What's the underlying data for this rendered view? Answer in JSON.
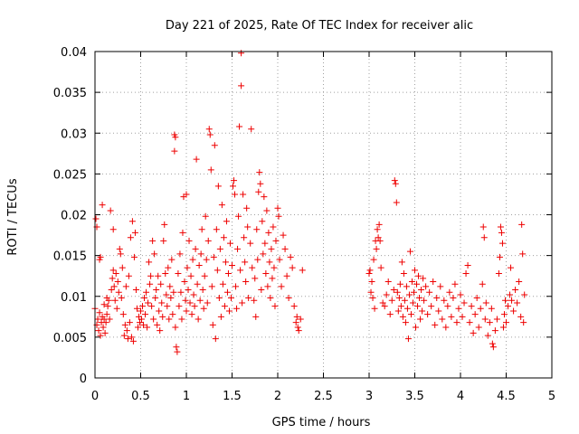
{
  "chart_data": {
    "type": "scatter",
    "title": "Day 221 of 2025, Rate Of TEC Index for receiver alic",
    "xlabel": "GPS time / hours",
    "ylabel": "ROTI / TECUs",
    "xlim": [
      0,
      5
    ],
    "ylim": [
      0,
      0.04
    ],
    "x_ticks": [
      "0",
      "0.5",
      "1",
      "1.5",
      "2",
      "2.5",
      "3",
      "3.5",
      "4",
      "4.5",
      "5"
    ],
    "y_ticks": [
      "0",
      "0.005",
      "0.01",
      "0.015",
      "0.02",
      "0.025",
      "0.03",
      "0.035",
      "0.04"
    ],
    "grid": true,
    "marker": "+",
    "color": "#ee0000",
    "points": [
      [
        0.0,
        0.0085
      ],
      [
        0.01,
        0.0195
      ],
      [
        0.02,
        0.0185
      ],
      [
        0.02,
        0.0065
      ],
      [
        0.03,
        0.0072
      ],
      [
        0.04,
        0.0058
      ],
      [
        0.05,
        0.0145
      ],
      [
        0.05,
        0.008
      ],
      [
        0.06,
        0.0148
      ],
      [
        0.06,
        0.0052
      ],
      [
        0.07,
        0.0068
      ],
      [
        0.08,
        0.0212
      ],
      [
        0.08,
        0.0075
      ],
      [
        0.09,
        0.0062
      ],
      [
        0.1,
        0.0072
      ],
      [
        0.1,
        0.009
      ],
      [
        0.11,
        0.0055
      ],
      [
        0.12,
        0.0068
      ],
      [
        0.13,
        0.0098
      ],
      [
        0.13,
        0.0078
      ],
      [
        0.14,
        0.0088
      ],
      [
        0.15,
        0.0095
      ],
      [
        0.16,
        0.0072
      ],
      [
        0.17,
        0.0205
      ],
      [
        0.18,
        0.0108
      ],
      [
        0.19,
        0.0122
      ],
      [
        0.2,
        0.0132
      ],
      [
        0.2,
        0.0182
      ],
      [
        0.21,
        0.0112
      ],
      [
        0.22,
        0.0095
      ],
      [
        0.23,
        0.0128
      ],
      [
        0.24,
        0.0085
      ],
      [
        0.25,
        0.0118
      ],
      [
        0.26,
        0.0105
      ],
      [
        0.27,
        0.0158
      ],
      [
        0.28,
        0.0152
      ],
      [
        0.29,
        0.0098
      ],
      [
        0.3,
        0.0135
      ],
      [
        0.31,
        0.0078
      ],
      [
        0.32,
        0.0052
      ],
      [
        0.33,
        0.0065
      ],
      [
        0.34,
        0.0112
      ],
      [
        0.35,
        0.0058
      ],
      [
        0.36,
        0.0048
      ],
      [
        0.37,
        0.0125
      ],
      [
        0.38,
        0.0068
      ],
      [
        0.39,
        0.0172
      ],
      [
        0.4,
        0.005
      ],
      [
        0.41,
        0.0192
      ],
      [
        0.42,
        0.0045
      ],
      [
        0.43,
        0.0148
      ],
      [
        0.44,
        0.0178
      ],
      [
        0.45,
        0.0108
      ],
      [
        0.46,
        0.0085
      ],
      [
        0.47,
        0.0062
      ],
      [
        0.48,
        0.0075
      ],
      [
        0.49,
        0.0068
      ],
      [
        0.5,
        0.0082
      ],
      [
        0.51,
        0.0072
      ],
      [
        0.52,
        0.0088
      ],
      [
        0.53,
        0.0065
      ],
      [
        0.54,
        0.0098
      ],
      [
        0.55,
        0.0078
      ],
      [
        0.56,
        0.0105
      ],
      [
        0.57,
        0.0062
      ],
      [
        0.58,
        0.0092
      ],
      [
        0.59,
        0.0142
      ],
      [
        0.6,
        0.0115
      ],
      [
        0.61,
        0.0125
      ],
      [
        0.62,
        0.0088
      ],
      [
        0.63,
        0.0168
      ],
      [
        0.64,
        0.0072
      ],
      [
        0.65,
        0.0152
      ],
      [
        0.66,
        0.0098
      ],
      [
        0.67,
        0.0108
      ],
      [
        0.68,
        0.0065
      ],
      [
        0.69,
        0.0125
      ],
      [
        0.7,
        0.0082
      ],
      [
        0.71,
        0.0058
      ],
      [
        0.72,
        0.0115
      ],
      [
        0.73,
        0.0092
      ],
      [
        0.74,
        0.0075
      ],
      [
        0.75,
        0.0168
      ],
      [
        0.76,
        0.0188
      ],
      [
        0.77,
        0.0128
      ],
      [
        0.78,
        0.0102
      ],
      [
        0.79,
        0.0088
      ],
      [
        0.8,
        0.0135
      ],
      [
        0.81,
        0.0072
      ],
      [
        0.82,
        0.0112
      ],
      [
        0.83,
        0.0098
      ],
      [
        0.84,
        0.0145
      ],
      [
        0.85,
        0.0078
      ],
      [
        0.86,
        0.0105
      ],
      [
        0.87,
        0.0298
      ],
      [
        0.87,
        0.0278
      ],
      [
        0.88,
        0.0295
      ],
      [
        0.88,
        0.0062
      ],
      [
        0.89,
        0.0038
      ],
      [
        0.9,
        0.0032
      ],
      [
        0.91,
        0.0128
      ],
      [
        0.92,
        0.0088
      ],
      [
        0.93,
        0.0152
      ],
      [
        0.94,
        0.0105
      ],
      [
        0.95,
        0.0072
      ],
      [
        0.96,
        0.0178
      ],
      [
        0.97,
        0.0222
      ],
      [
        0.98,
        0.0118
      ],
      [
        0.99,
        0.0095
      ],
      [
        1.0,
        0.0225
      ],
      [
        1.0,
        0.0082
      ],
      [
        1.01,
        0.0135
      ],
      [
        1.02,
        0.0108
      ],
      [
        1.03,
        0.0168
      ],
      [
        1.04,
        0.0092
      ],
      [
        1.05,
        0.0125
      ],
      [
        1.06,
        0.0078
      ],
      [
        1.07,
        0.0145
      ],
      [
        1.08,
        0.0102
      ],
      [
        1.09,
        0.0088
      ],
      [
        1.1,
        0.0158
      ],
      [
        1.11,
        0.0268
      ],
      [
        1.12,
        0.0115
      ],
      [
        1.13,
        0.0072
      ],
      [
        1.14,
        0.0138
      ],
      [
        1.15,
        0.0095
      ],
      [
        1.16,
        0.0152
      ],
      [
        1.17,
        0.0182
      ],
      [
        1.18,
        0.0108
      ],
      [
        1.19,
        0.0085
      ],
      [
        1.2,
        0.0125
      ],
      [
        1.21,
        0.0198
      ],
      [
        1.22,
        0.0145
      ],
      [
        1.23,
        0.0092
      ],
      [
        1.24,
        0.0168
      ],
      [
        1.25,
        0.0305
      ],
      [
        1.26,
        0.0298
      ],
      [
        1.27,
        0.0255
      ],
      [
        1.28,
        0.0112
      ],
      [
        1.29,
        0.0065
      ],
      [
        1.3,
        0.0148
      ],
      [
        1.31,
        0.0285
      ],
      [
        1.32,
        0.0048
      ],
      [
        1.33,
        0.0182
      ],
      [
        1.34,
        0.0132
      ],
      [
        1.35,
        0.0235
      ],
      [
        1.36,
        0.0098
      ],
      [
        1.37,
        0.0158
      ],
      [
        1.38,
        0.0075
      ],
      [
        1.39,
        0.0212
      ],
      [
        1.4,
        0.0115
      ],
      [
        1.41,
        0.0172
      ],
      [
        1.42,
        0.0088
      ],
      [
        1.43,
        0.0142
      ],
      [
        1.44,
        0.0192
      ],
      [
        1.45,
        0.0105
      ],
      [
        1.46,
        0.0128
      ],
      [
        1.47,
        0.0082
      ],
      [
        1.48,
        0.0165
      ],
      [
        1.49,
        0.0098
      ],
      [
        1.5,
        0.0138
      ],
      [
        1.51,
        0.0235
      ],
      [
        1.52,
        0.0242
      ],
      [
        1.53,
        0.0225
      ],
      [
        1.54,
        0.0112
      ],
      [
        1.55,
        0.0085
      ],
      [
        1.56,
        0.0158
      ],
      [
        1.57,
        0.0198
      ],
      [
        1.58,
        0.0308
      ],
      [
        1.59,
        0.0132
      ],
      [
        1.6,
        0.0398
      ],
      [
        1.6,
        0.0358
      ],
      [
        1.61,
        0.0092
      ],
      [
        1.62,
        0.0225
      ],
      [
        1.63,
        0.0172
      ],
      [
        1.64,
        0.0142
      ],
      [
        1.65,
        0.0118
      ],
      [
        1.66,
        0.0208
      ],
      [
        1.67,
        0.0185
      ],
      [
        1.68,
        0.0098
      ],
      [
        1.7,
        0.0165
      ],
      [
        1.71,
        0.0305
      ],
      [
        1.72,
        0.0135
      ],
      [
        1.74,
        0.0095
      ],
      [
        1.75,
        0.0122
      ],
      [
        1.76,
        0.0075
      ],
      [
        1.77,
        0.0182
      ],
      [
        1.78,
        0.0145
      ],
      [
        1.79,
        0.0228
      ],
      [
        1.8,
        0.0252
      ],
      [
        1.81,
        0.0238
      ],
      [
        1.82,
        0.0108
      ],
      [
        1.83,
        0.0192
      ],
      [
        1.84,
        0.0152
      ],
      [
        1.85,
        0.0222
      ],
      [
        1.86,
        0.0165
      ],
      [
        1.87,
        0.0128
      ],
      [
        1.88,
        0.0205
      ],
      [
        1.89,
        0.0112
      ],
      [
        1.9,
        0.0178
      ],
      [
        1.91,
        0.0142
      ],
      [
        1.92,
        0.0098
      ],
      [
        1.93,
        0.0158
      ],
      [
        1.94,
        0.0122
      ],
      [
        1.95,
        0.0185
      ],
      [
        1.96,
        0.0135
      ],
      [
        1.97,
        0.0088
      ],
      [
        1.98,
        0.0168
      ],
      [
        2.0,
        0.0208
      ],
      [
        2.01,
        0.0198
      ],
      [
        2.02,
        0.0145
      ],
      [
        2.04,
        0.0112
      ],
      [
        2.06,
        0.0175
      ],
      [
        2.08,
        0.0158
      ],
      [
        2.1,
        0.0125
      ],
      [
        2.12,
        0.0098
      ],
      [
        2.14,
        0.0148
      ],
      [
        2.16,
        0.0135
      ],
      [
        2.18,
        0.0088
      ],
      [
        2.2,
        0.0068
      ],
      [
        2.21,
        0.0075
      ],
      [
        2.22,
        0.0062
      ],
      [
        2.23,
        0.0058
      ],
      [
        2.25,
        0.0072
      ],
      [
        2.27,
        0.0132
      ],
      [
        3.0,
        0.0128
      ],
      [
        3.01,
        0.0132
      ],
      [
        3.02,
        0.0105
      ],
      [
        3.03,
        0.0118
      ],
      [
        3.04,
        0.0098
      ],
      [
        3.05,
        0.0145
      ],
      [
        3.06,
        0.0085
      ],
      [
        3.07,
        0.0168
      ],
      [
        3.08,
        0.0158
      ],
      [
        3.09,
        0.0182
      ],
      [
        3.1,
        0.0172
      ],
      [
        3.11,
        0.0188
      ],
      [
        3.12,
        0.0168
      ],
      [
        3.13,
        0.0135
      ],
      [
        3.15,
        0.0092
      ],
      [
        3.17,
        0.0088
      ],
      [
        3.19,
        0.0102
      ],
      [
        3.21,
        0.0118
      ],
      [
        3.23,
        0.0078
      ],
      [
        3.25,
        0.0095
      ],
      [
        3.27,
        0.0108
      ],
      [
        3.28,
        0.0242
      ],
      [
        3.29,
        0.0238
      ],
      [
        3.3,
        0.0215
      ],
      [
        3.31,
        0.0105
      ],
      [
        3.32,
        0.0082
      ],
      [
        3.33,
        0.0098
      ],
      [
        3.34,
        0.0115
      ],
      [
        3.35,
        0.0088
      ],
      [
        3.36,
        0.0142
      ],
      [
        3.37,
        0.0075
      ],
      [
        3.38,
        0.0128
      ],
      [
        3.39,
        0.0095
      ],
      [
        3.4,
        0.0068
      ],
      [
        3.41,
        0.0112
      ],
      [
        3.42,
        0.0085
      ],
      [
        3.43,
        0.0048
      ],
      [
        3.44,
        0.0102
      ],
      [
        3.45,
        0.0155
      ],
      [
        3.46,
        0.0078
      ],
      [
        3.47,
        0.0118
      ],
      [
        3.48,
        0.0092
      ],
      [
        3.49,
        0.0105
      ],
      [
        3.5,
        0.0132
      ],
      [
        3.51,
        0.0062
      ],
      [
        3.52,
        0.0115
      ],
      [
        3.53,
        0.0088
      ],
      [
        3.54,
        0.0125
      ],
      [
        3.55,
        0.0098
      ],
      [
        3.56,
        0.0072
      ],
      [
        3.57,
        0.0108
      ],
      [
        3.58,
        0.0082
      ],
      [
        3.59,
        0.0122
      ],
      [
        3.6,
        0.0095
      ],
      [
        3.62,
        0.0112
      ],
      [
        3.64,
        0.0078
      ],
      [
        3.66,
        0.0105
      ],
      [
        3.68,
        0.0088
      ],
      [
        3.7,
        0.0118
      ],
      [
        3.72,
        0.0065
      ],
      [
        3.74,
        0.0098
      ],
      [
        3.76,
        0.0082
      ],
      [
        3.78,
        0.0112
      ],
      [
        3.8,
        0.0072
      ],
      [
        3.82,
        0.0095
      ],
      [
        3.84,
        0.0062
      ],
      [
        3.86,
        0.0088
      ],
      [
        3.88,
        0.0105
      ],
      [
        3.9,
        0.0075
      ],
      [
        3.92,
        0.0098
      ],
      [
        3.94,
        0.0115
      ],
      [
        3.96,
        0.0068
      ],
      [
        3.98,
        0.0085
      ],
      [
        4.0,
        0.0102
      ],
      [
        4.02,
        0.0075
      ],
      [
        4.04,
        0.0092
      ],
      [
        4.06,
        0.0128
      ],
      [
        4.08,
        0.0138
      ],
      [
        4.1,
        0.0068
      ],
      [
        4.12,
        0.0088
      ],
      [
        4.14,
        0.0055
      ],
      [
        4.16,
        0.0078
      ],
      [
        4.18,
        0.0098
      ],
      [
        4.2,
        0.0062
      ],
      [
        4.22,
        0.0085
      ],
      [
        4.24,
        0.0115
      ],
      [
        4.25,
        0.0185
      ],
      [
        4.26,
        0.0172
      ],
      [
        4.27,
        0.0072
      ],
      [
        4.28,
        0.0092
      ],
      [
        4.3,
        0.0052
      ],
      [
        4.32,
        0.0068
      ],
      [
        4.34,
        0.0085
      ],
      [
        4.35,
        0.0042
      ],
      [
        4.36,
        0.0038
      ],
      [
        4.38,
        0.0058
      ],
      [
        4.4,
        0.0072
      ],
      [
        4.42,
        0.0128
      ],
      [
        4.43,
        0.0148
      ],
      [
        4.44,
        0.0185
      ],
      [
        4.45,
        0.0178
      ],
      [
        4.46,
        0.0165
      ],
      [
        4.47,
        0.0062
      ],
      [
        4.48,
        0.0078
      ],
      [
        4.49,
        0.0095
      ],
      [
        4.5,
        0.0068
      ],
      [
        4.52,
        0.0088
      ],
      [
        4.54,
        0.0102
      ],
      [
        4.55,
        0.0135
      ],
      [
        4.56,
        0.0095
      ],
      [
        4.58,
        0.0082
      ],
      [
        4.6,
        0.0108
      ],
      [
        4.62,
        0.0092
      ],
      [
        4.64,
        0.0118
      ],
      [
        4.66,
        0.0075
      ],
      [
        4.67,
        0.0188
      ],
      [
        4.68,
        0.0152
      ],
      [
        4.69,
        0.0068
      ],
      [
        4.7,
        0.0102
      ]
    ]
  }
}
